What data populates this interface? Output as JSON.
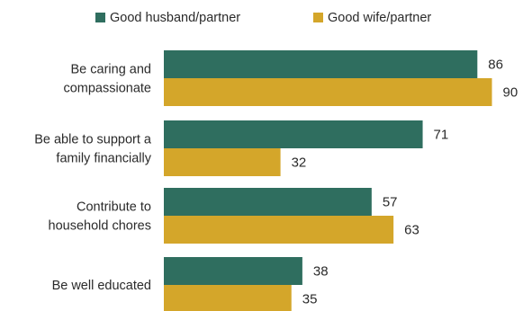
{
  "chart_data": {
    "type": "bar",
    "orientation": "horizontal",
    "categories": [
      [
        "Be caring and",
        "compassionate"
      ],
      [
        "Be able to support a",
        "family financially"
      ],
      [
        "Contribute to",
        "household chores"
      ],
      [
        "Be well educated"
      ]
    ],
    "series": [
      {
        "name": "Good husband/partner",
        "color": "#2f6e5f",
        "values": [
          86,
          71,
          57,
          38
        ]
      },
      {
        "name": "Good wife/partner",
        "color": "#d4a62a",
        "values": [
          90,
          32,
          63,
          35
        ]
      }
    ],
    "xlim": [
      0,
      100
    ],
    "grid": false,
    "legend_position": "top",
    "data_labels": true
  }
}
